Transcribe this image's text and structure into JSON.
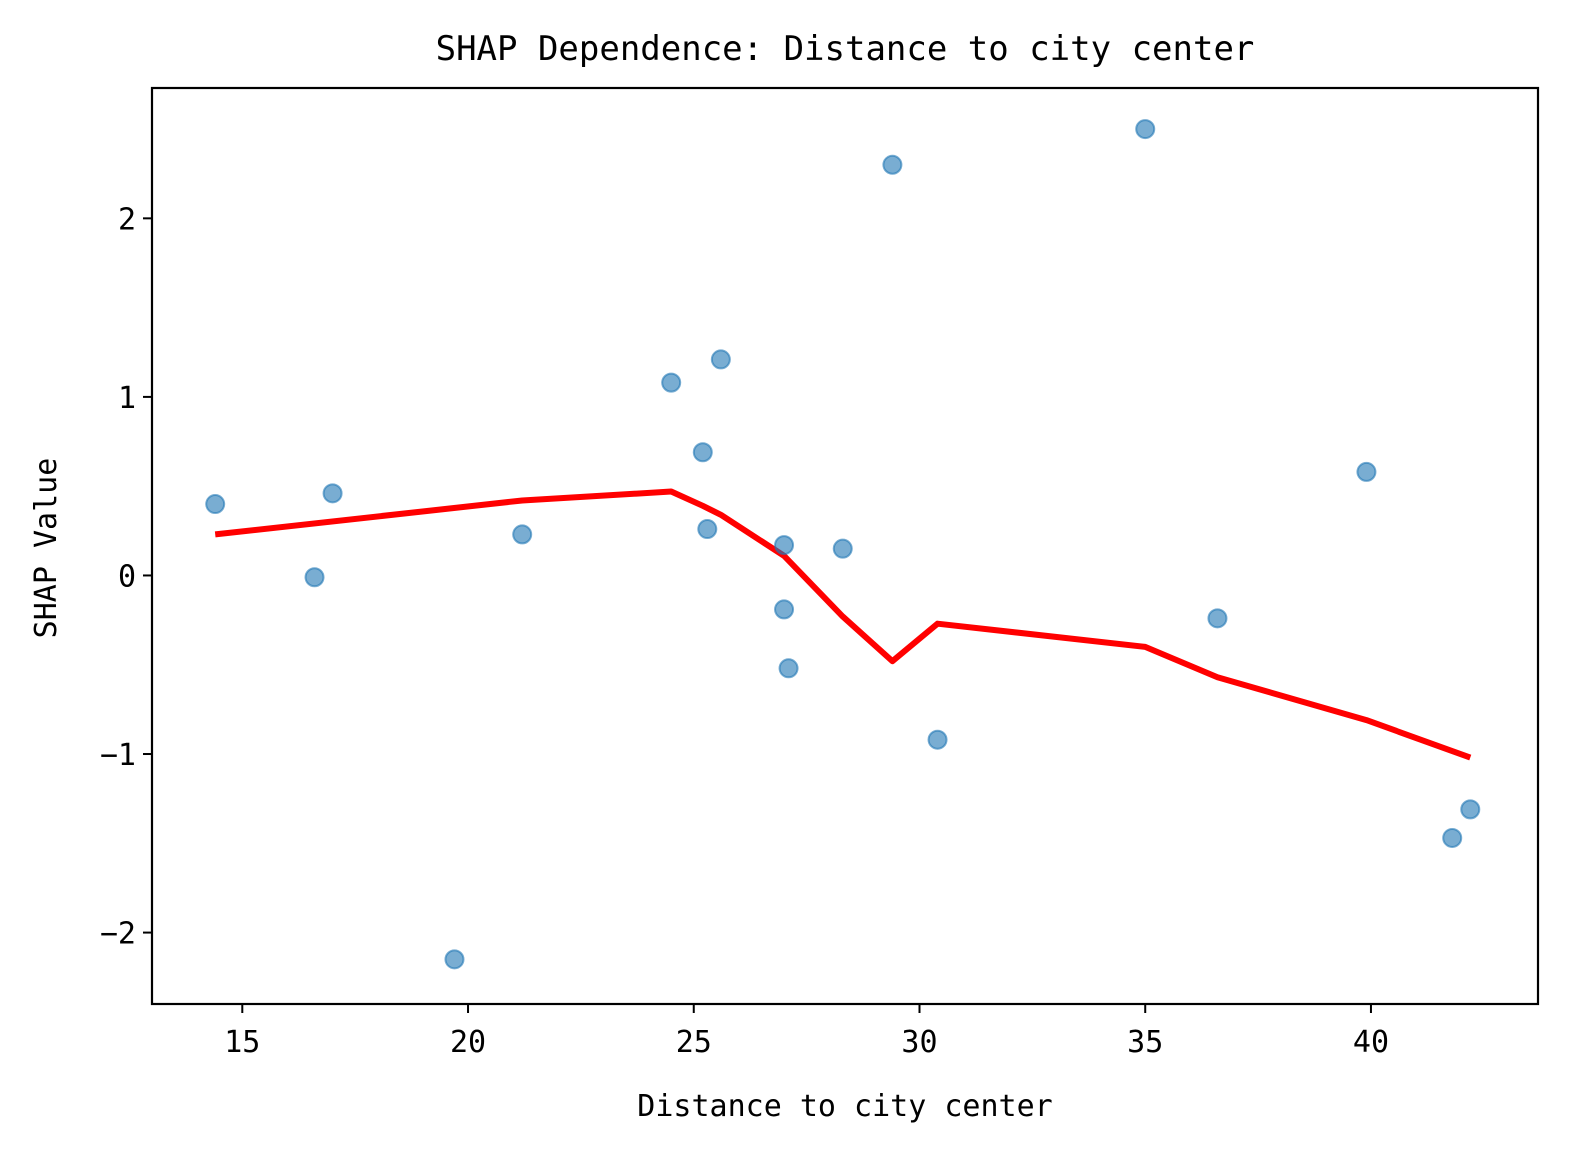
{
  "chart_data": {
    "type": "scatter",
    "title": "SHAP Dependence: Distance to city center",
    "xlabel": "Distance to city center",
    "ylabel": "SHAP Value",
    "xlim": [
      13.0,
      43.7
    ],
    "ylim": [
      -2.4,
      2.73
    ],
    "xticks": [
      15,
      20,
      25,
      30,
      35,
      40
    ],
    "yticks": [
      -2,
      -1,
      0,
      1,
      2
    ],
    "xtick_labels": [
      "15",
      "20",
      "25",
      "30",
      "35",
      "40"
    ],
    "ytick_labels": [
      "−2",
      "−1",
      "0",
      "1",
      "2"
    ],
    "grid": false,
    "legend": "none",
    "colors": {
      "points": "#1f77b4",
      "trend": "#ff0000"
    },
    "series": [
      {
        "kind": "points",
        "x": [
          14.4,
          16.6,
          17.0,
          19.7,
          21.2,
          24.5,
          25.2,
          25.3,
          25.6,
          27.0,
          27.0,
          27.1,
          28.3,
          29.4,
          30.4,
          35.0,
          36.6,
          39.9,
          41.8,
          42.2
        ],
        "y": [
          0.4,
          -0.01,
          0.46,
          -2.15,
          0.23,
          1.08,
          0.69,
          0.26,
          1.21,
          0.17,
          -0.19,
          -0.52,
          0.15,
          2.3,
          -0.92,
          2.5,
          -0.24,
          0.58,
          -1.47,
          -1.31
        ]
      },
      {
        "kind": "trend",
        "x": [
          14.4,
          21.2,
          24.5,
          25.2,
          25.6,
          27.0,
          28.3,
          29.4,
          30.4,
          35.0,
          36.6,
          39.9,
          42.2
        ],
        "y": [
          0.23,
          0.42,
          0.47,
          0.39,
          0.34,
          0.11,
          -0.23,
          -0.48,
          -0.27,
          -0.4,
          -0.57,
          -0.81,
          -1.02
        ]
      }
    ]
  }
}
